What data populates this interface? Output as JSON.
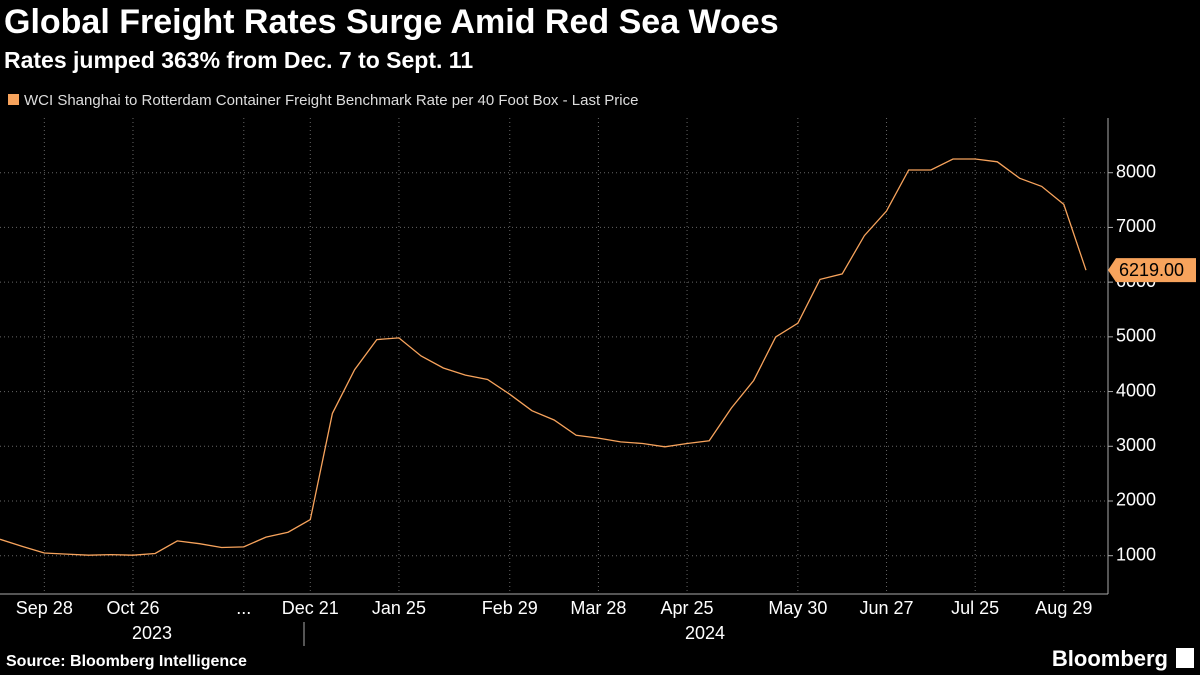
{
  "chart_data": {
    "type": "line",
    "title": "Global Freight Rates Surge Amid Red Sea Woes",
    "subtitle": "Rates jumped 363% from Dec. 7 to Sept. 11",
    "source": "Source: Bloomberg Intelligence",
    "brand": "Bloomberg",
    "years": [
      "2023",
      "2024"
    ],
    "categories": [
      null,
      null,
      "Sep 28",
      null,
      null,
      null,
      "Oct 26",
      null,
      null,
      null,
      null,
      "...",
      null,
      null,
      "Dec 21",
      null,
      null,
      null,
      "Jan 25",
      null,
      null,
      null,
      null,
      "Feb 29",
      null,
      null,
      null,
      "Mar 28",
      null,
      null,
      null,
      "Apr 25",
      null,
      null,
      null,
      null,
      "May 30",
      null,
      null,
      null,
      "Jun 27",
      null,
      null,
      null,
      "Jul 25",
      null,
      null,
      null,
      "Aug 29",
      null
    ],
    "series": [
      {
        "name": "WCI Shanghai to Rotterdam Container Freight Benchmark Rate per 40 Foot Box - Last Price",
        "color": "#f7a35c",
        "values": [
          1300,
          1170,
          1050,
          1030,
          1010,
          1020,
          1010,
          1040,
          1270,
          1220,
          1150,
          1160,
          1340,
          1430,
          1660,
          3600,
          4400,
          4950,
          4980,
          4650,
          4430,
          4300,
          4220,
          3950,
          3650,
          3480,
          3200,
          3150,
          3080,
          3050,
          2990,
          3050,
          3100,
          3700,
          4200,
          5000,
          5250,
          6050,
          6150,
          6850,
          7300,
          8050,
          8050,
          8250,
          8250,
          8200,
          7900,
          7750,
          7420,
          6219
        ],
        "value_labels": [
          null,
          null,
          null,
          null,
          null,
          null,
          null,
          null,
          null,
          null,
          null,
          null,
          null,
          null,
          null,
          null,
          null,
          null,
          null,
          null,
          null,
          null,
          null,
          null,
          null,
          null,
          null,
          null,
          null,
          null,
          null,
          null,
          null,
          null,
          null,
          null,
          null,
          null,
          null,
          null,
          null,
          null,
          null,
          null,
          null,
          null,
          null,
          null,
          null,
          "6219.00"
        ]
      }
    ],
    "ylim": [
      300,
      9000
    ],
    "yticks": [
      1000,
      2000,
      3000,
      4000,
      5000,
      6000,
      7000,
      8000
    ],
    "grid": true
  }
}
